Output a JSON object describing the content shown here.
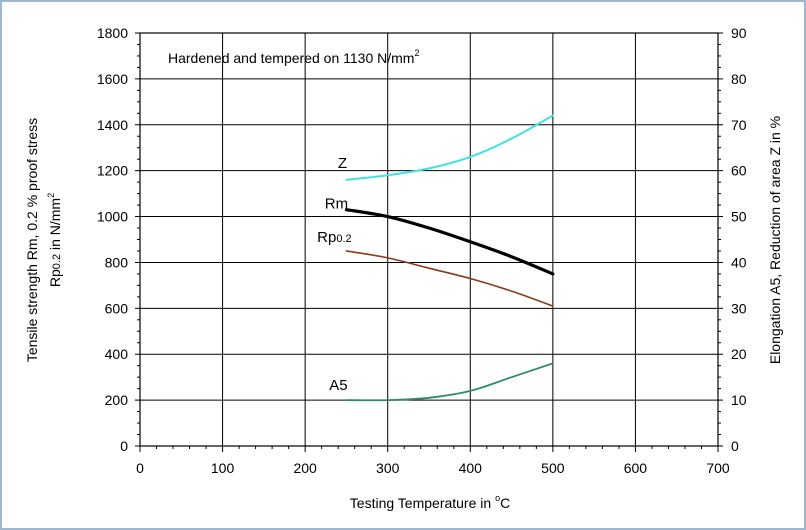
{
  "chart_data": {
    "type": "line",
    "annotation": {
      "text": "Hardened and tempered on 1130 N/mm",
      "sup": "2"
    },
    "xlabel": {
      "text": "Testing Temperature in ",
      "sup": "o",
      "unit": "C"
    },
    "ylabel_left": {
      "line1": "Tensile strength Rm, 0.2 % proof stress",
      "line2_main": "Rp",
      "line2_sub": "0.2",
      "line2_rest": " in N/mm",
      "line2_sup": "2"
    },
    "ylabel_right": "Elongation A5, Reduction of area Z in %",
    "xlim": [
      0,
      700
    ],
    "ylim_left": [
      0,
      1800
    ],
    "ylim_right": [
      0,
      90
    ],
    "x_ticks": [
      "0",
      "100",
      "200",
      "300",
      "400",
      "500",
      "600",
      "700"
    ],
    "y_left_ticks": [
      "0",
      "200",
      "400",
      "600",
      "800",
      "1000",
      "1200",
      "1400",
      "1600",
      "1800"
    ],
    "y_right_ticks": [
      "0",
      "10",
      "20",
      "30",
      "40",
      "50",
      "60",
      "70",
      "80",
      "90"
    ],
    "series": [
      {
        "name": "Z",
        "axis": "right",
        "color": "#40e0e6",
        "label": {
          "main": "Z",
          "sub": ""
        },
        "x": [
          250,
          300,
          350,
          400,
          450,
          500
        ],
        "values": [
          58,
          59,
          60.5,
          63,
          67,
          72
        ]
      },
      {
        "name": "Rm",
        "axis": "left",
        "color": "#000000",
        "label": {
          "main": "Rm",
          "sub": ""
        },
        "x": [
          250,
          300,
          350,
          400,
          450,
          500
        ],
        "values": [
          1030,
          1000,
          950,
          890,
          825,
          750
        ]
      },
      {
        "name": "Rp0.2",
        "axis": "left",
        "color": "#8b3a1a",
        "label": {
          "main": "Rp",
          "sub": "0.2"
        },
        "x": [
          250,
          300,
          350,
          400,
          450,
          500
        ],
        "values": [
          850,
          820,
          775,
          730,
          675,
          610
        ]
      },
      {
        "name": "A5",
        "axis": "right",
        "color": "#2e8b6a",
        "label": {
          "main": "A5",
          "sub": ""
        },
        "x": [
          250,
          300,
          350,
          400,
          450,
          500
        ],
        "values": [
          10,
          10,
          10.5,
          12,
          15,
          18
        ]
      }
    ]
  }
}
